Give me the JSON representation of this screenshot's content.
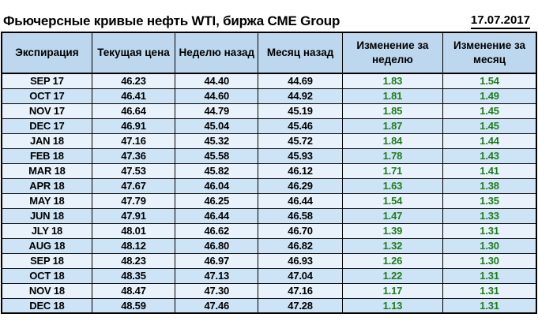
{
  "colors": {
    "header_bg": "#BDD7EE",
    "row_odd_bg": "#E9F2FB",
    "row_even_bg": "#CDE3F6",
    "border": "#000000",
    "change_positive": "#1E7D1E",
    "text": "#000000",
    "page_bg": "#FFFFFF"
  },
  "header": {
    "title": "Фьючерсные кривые нефть WTI, биржа CME Group",
    "date": "17.07.2017"
  },
  "chart_data": {
    "type": "table",
    "title": "Фьючерсные кривые нефть WTI, биржа CME Group",
    "date_label": "17.07.2017",
    "columns": [
      "Экспирация",
      "Текущая цена",
      "Неделю назад",
      "Месяц назад",
      "Изменение за неделю",
      "Изменение за месяц"
    ],
    "column_keys": [
      "expiration-cell",
      "current-price-cell",
      "week-ago-cell",
      "month-ago-cell",
      "week-change-cell",
      "month-change-cell"
    ],
    "change_column_indexes": [
      4,
      5
    ],
    "rows": [
      [
        "SEP 17",
        "46.23",
        "44.40",
        "44.69",
        "1.83",
        "1.54"
      ],
      [
        "OCT 17",
        "46.41",
        "44.60",
        "44.92",
        "1.81",
        "1.49"
      ],
      [
        "NOV 17",
        "46.64",
        "44.79",
        "45.19",
        "1.85",
        "1.45"
      ],
      [
        "DEC 17",
        "46.91",
        "45.04",
        "45.46",
        "1.87",
        "1.45"
      ],
      [
        "JAN 18",
        "47.16",
        "45.32",
        "45.72",
        "1.84",
        "1.44"
      ],
      [
        "FEB 18",
        "47.36",
        "45.58",
        "45.93",
        "1.78",
        "1.43"
      ],
      [
        "MAR 18",
        "47.53",
        "45.82",
        "46.12",
        "1.71",
        "1.41"
      ],
      [
        "APR 18",
        "47.67",
        "46.04",
        "46.29",
        "1.63",
        "1.38"
      ],
      [
        "MAY 18",
        "47.79",
        "46.25",
        "46.44",
        "1.54",
        "1.35"
      ],
      [
        "JUN 18",
        "47.91",
        "46.44",
        "46.58",
        "1.47",
        "1.33"
      ],
      [
        "JLY 18",
        "48.01",
        "46.62",
        "46.70",
        "1.39",
        "1.31"
      ],
      [
        "AUG 18",
        "48.12",
        "46.80",
        "46.82",
        "1.32",
        "1.30"
      ],
      [
        "SEP 18",
        "48.23",
        "46.97",
        "46.93",
        "1.26",
        "1.30"
      ],
      [
        "OCT 18",
        "48.35",
        "47.13",
        "47.04",
        "1.22",
        "1.31"
      ],
      [
        "NOV 18",
        "48.47",
        "47.30",
        "47.16",
        "1.17",
        "1.31"
      ],
      [
        "DEC 18",
        "48.59",
        "47.46",
        "47.28",
        "1.13",
        "1.31"
      ]
    ]
  }
}
